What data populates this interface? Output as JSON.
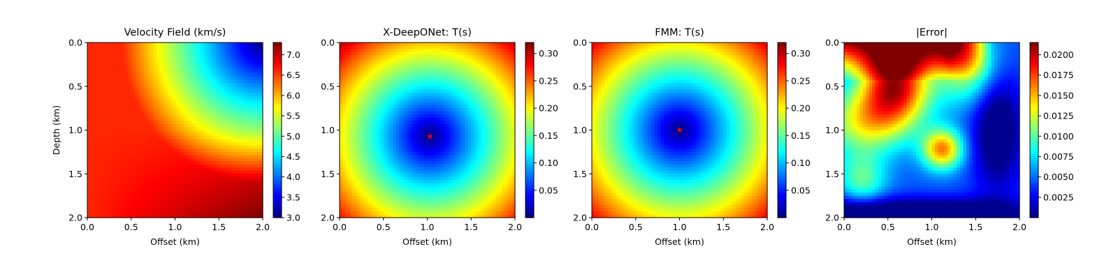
{
  "chart_data": [
    {
      "type": "heatmap",
      "title": "Velocity Field (km/s)",
      "xlabel": "Offset (km)",
      "ylabel": "Depth (km)",
      "xlim": [
        0.0,
        2.0
      ],
      "ylim": [
        2.0,
        0.0
      ],
      "xticks": [
        "0.0",
        "0.5",
        "1.0",
        "1.5",
        "2.0"
      ],
      "yticks": [
        "0.0",
        "0.5",
        "1.0",
        "1.5",
        "2.0"
      ],
      "colormap": "jet",
      "colorbar": {
        "range": [
          3.0,
          7.3
        ],
        "ticks": [
          "3.0",
          "3.5",
          "4.0",
          "4.5",
          "5.0",
          "5.5",
          "6.0",
          "6.5",
          "7.0"
        ]
      },
      "field": "velocity model: ~3.0 km/s at top-right corner (2.0, 0.0), increasing radially to ~7.3 km/s at bottom-right (2.0, 2.0); ~6.5 km/s along left edge"
    },
    {
      "type": "heatmap",
      "title": "X-DeepONet: T(s)",
      "xlabel": "Offset (km)",
      "ylabel": "",
      "xlim": [
        0.0,
        2.0
      ],
      "ylim": [
        2.0,
        0.0
      ],
      "xticks": [
        "0.0",
        "0.5",
        "1.0",
        "1.5",
        "2.0"
      ],
      "yticks": [
        "0.0",
        "0.5",
        "1.0",
        "1.5",
        "2.0"
      ],
      "colormap": "jet",
      "colorbar": {
        "range": [
          0.0,
          0.32
        ],
        "ticks": [
          "0.05",
          "0.10",
          "0.15",
          "0.20",
          "0.25",
          "0.30"
        ]
      },
      "source": {
        "x": 1.03,
        "y": 1.07,
        "marker": "star",
        "color": "#ff0000"
      },
      "field": "traveltime increasing radially from source; max ~0.31 s at top-right corner"
    },
    {
      "type": "heatmap",
      "title": "FMM: T(s)",
      "xlabel": "Offset (km)",
      "ylabel": "",
      "xlim": [
        0.0,
        2.0
      ],
      "ylim": [
        2.0,
        0.0
      ],
      "xticks": [
        "0.0",
        "0.5",
        "1.0",
        "1.5",
        "2.0"
      ],
      "yticks": [
        "0.0",
        "0.5",
        "1.0",
        "1.5",
        "2.0"
      ],
      "colormap": "jet",
      "colorbar": {
        "range": [
          0.0,
          0.32
        ],
        "ticks": [
          "0.05",
          "0.10",
          "0.15",
          "0.20",
          "0.25",
          "0.30"
        ]
      },
      "source": {
        "x": 1.0,
        "y": 1.0,
        "marker": "star",
        "color": "#ff0000"
      },
      "field": "traveltime increasing radially from source; max ~0.31 s at top-right corner"
    },
    {
      "type": "heatmap",
      "title": "|Error|",
      "xlabel": "Offset (km)",
      "ylabel": "",
      "xlim": [
        0.0,
        2.0
      ],
      "ylim": [
        2.0,
        0.0
      ],
      "xticks": [
        "0.0",
        "0.5",
        "1.0",
        "1.5",
        "2.0"
      ],
      "yticks": [
        "0.0",
        "0.5",
        "1.0",
        "1.5",
        "2.0"
      ],
      "colormap": "jet",
      "colorbar": {
        "range": [
          0.0,
          0.0215
        ],
        "ticks": [
          "0.0025",
          "0.0050",
          "0.0075",
          "0.0100",
          "0.0125",
          "0.0150",
          "0.0175",
          "0.0200"
        ]
      },
      "field": "absolute error: maximum ~0.021 along top-left, ~0.018 near (0.6, 0.5), ~0.012 blob near (1.1, 1.2), near zero along bottom and right bands"
    }
  ]
}
